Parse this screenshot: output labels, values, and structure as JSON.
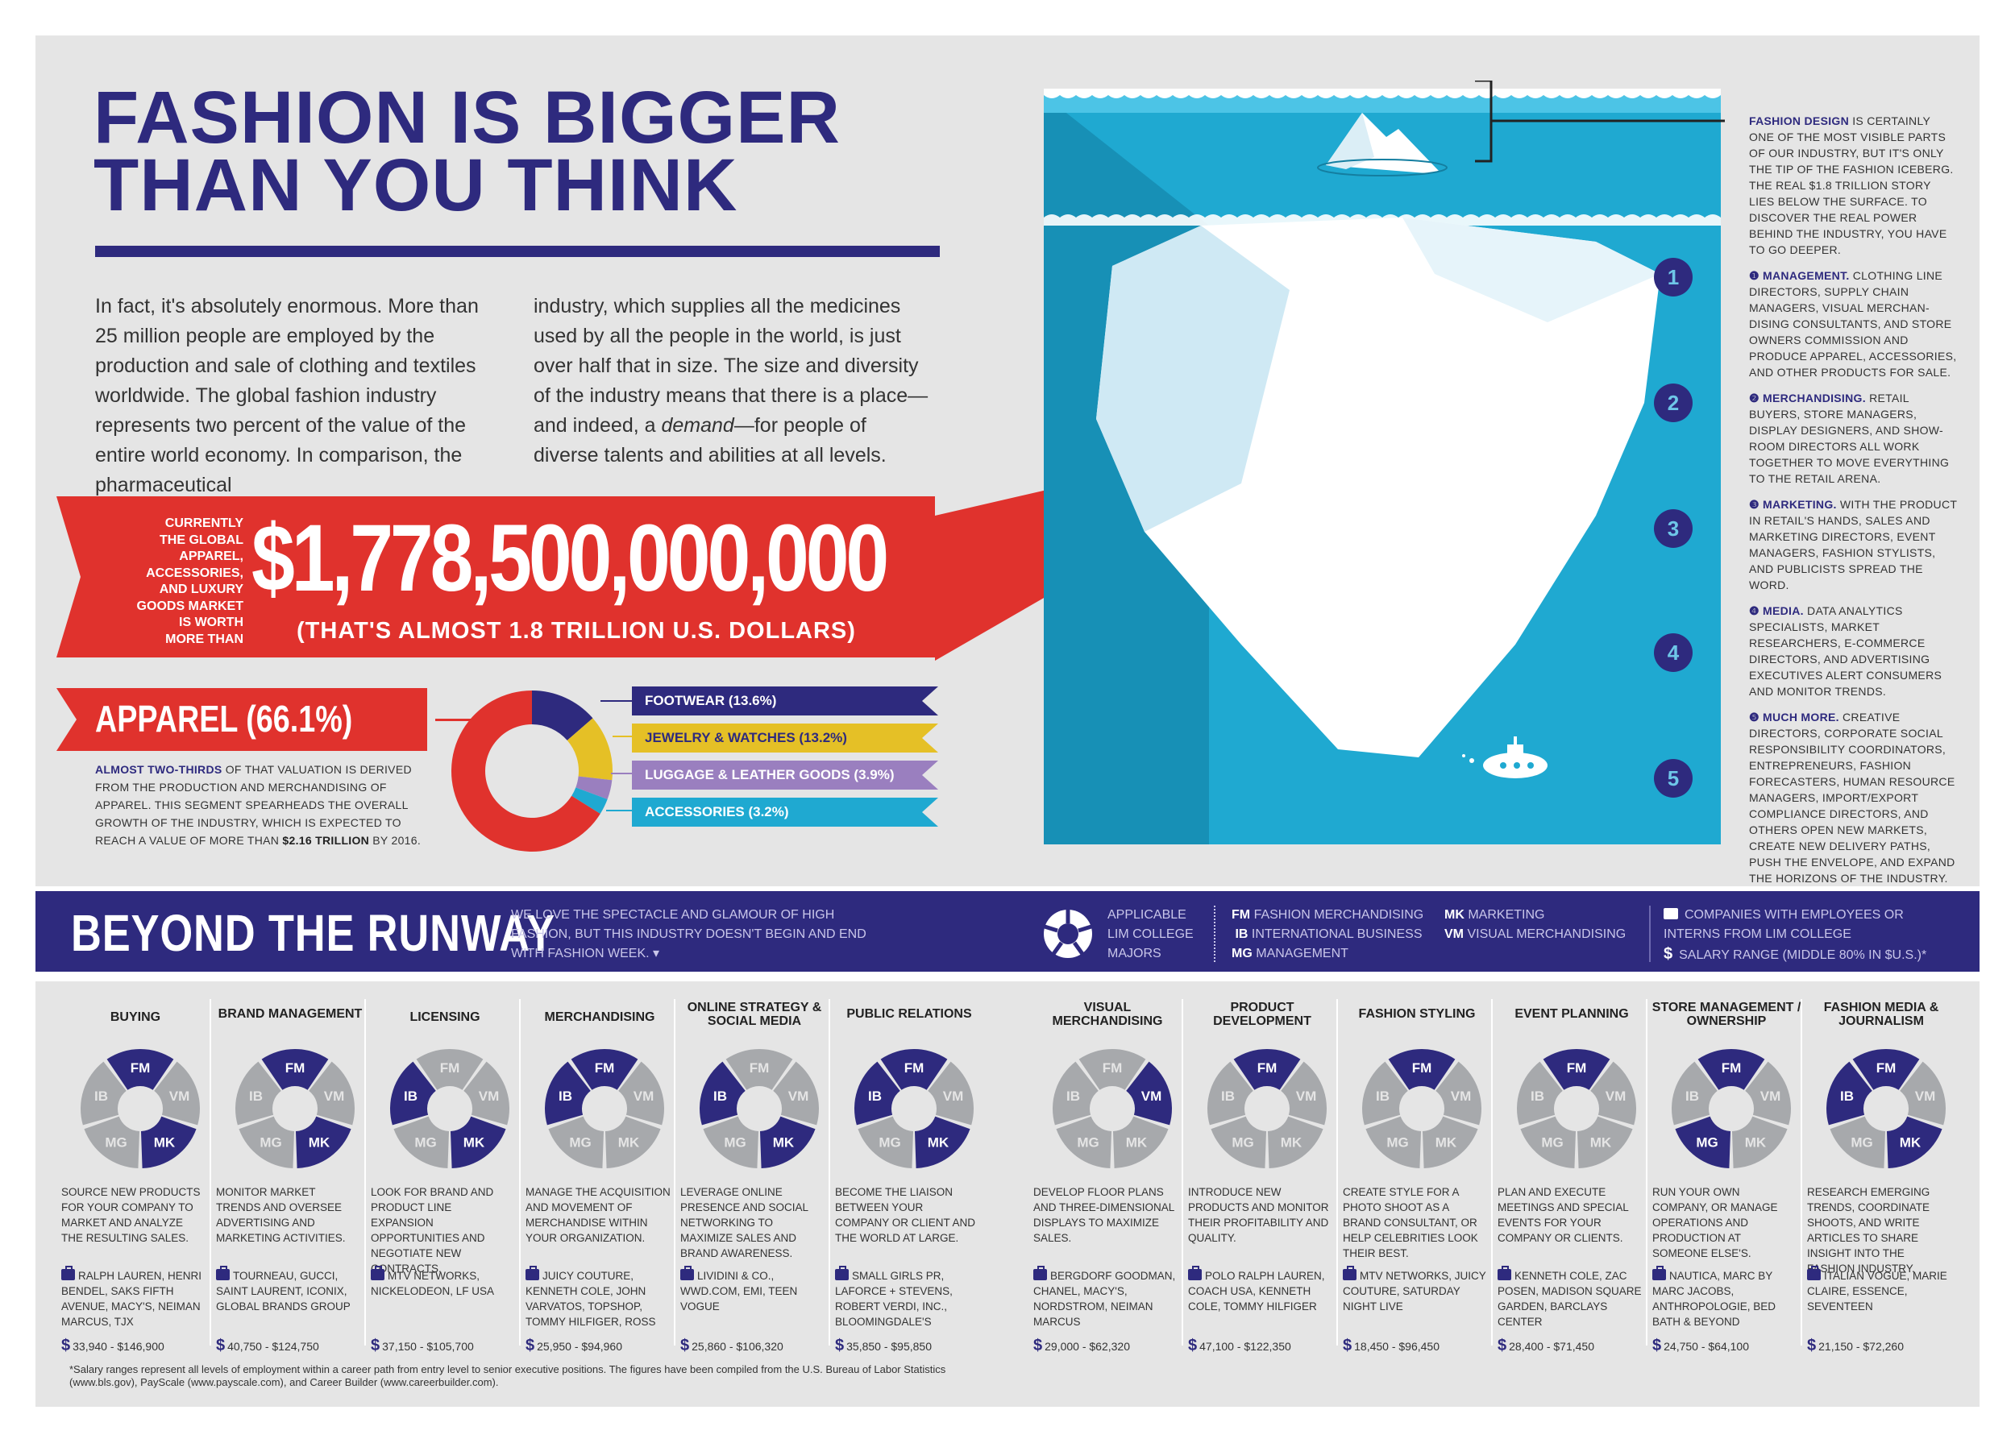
{
  "header": {
    "title_line1": "FASHION IS BIGGER",
    "title_line2": "THAN YOU THINK"
  },
  "intro": {
    "col1": "In fact, it's absolutely enormous. More than 25 million people are employed by the production and sale of clothing and textiles worldwide. The global fashion industry represents two percent of the value of the entire world economy. In comparison, the pharmaceutical",
    "col2_a": "industry, which supplies all the medicines used by all the people in the world, is just over half that in size. The size and diversity of the industry means that there is a place—and indeed, a ",
    "col2_em": "demand",
    "col2_b": "—for people of diverse talents and abilities at all levels."
  },
  "market": {
    "lead": [
      "CURRENTLY",
      "THE GLOBAL",
      "APPAREL,",
      "ACCESSORIES,",
      "AND LUXURY",
      "GOODS MARKET",
      "IS WORTH",
      "MORE THAN"
    ],
    "value": "$1,778,500,000,000",
    "value_sub": "(THAT'S ALMOST 1.8 TRILLION U.S. DOLLARS)"
  },
  "apparel": {
    "label": "APPAREL (66.1%)",
    "desc_lead": "ALMOST TWO-THIRDS",
    "desc_body": " OF THAT VALUATION IS DERIVED FROM THE PRODUCTION AND MERCHANDISING OF APPAREL. THIS SEGMENT SPEARHEADS THE OVERALL GROWTH OF THE INDUSTRY, WHICH IS EXPECTED TO REACH A VALUE OF MORE THAN ",
    "desc_value": "$2.16 TRILLION",
    "desc_end": " BY 2016."
  },
  "segments": [
    {
      "label": "FOOTWEAR (13.6%)",
      "percent": 13.6,
      "color": "#2e2a7e"
    },
    {
      "label": "JEWELRY & WATCHES (13.2%)",
      "percent": 13.2,
      "color": "#e5c026"
    },
    {
      "label": "LUGGAGE & LEATHER GOODS (3.9%)",
      "percent": 3.9,
      "color": "#9a7fbf"
    },
    {
      "label": "ACCESSORIES (3.2%)",
      "percent": 3.2,
      "color": "#1fa9d1"
    }
  ],
  "apparel_percent": 66.1,
  "apparel_color": "#e0322d",
  "iceberg": {
    "numbers": [
      "1",
      "2",
      "3",
      "4",
      "5"
    ],
    "fashion_design_lead": "FASHION DESIGN",
    "fashion_design_body": " IS CERTAINLY ONE OF THE MOST VISIBLE PARTS OF OUR INDUSTRY, BUT IT'S ONLY THE TIP OF THE FASHION ICEBERG. THE REAL $1.8 TRILLION STORY LIES BELOW THE SURFACE. TO DISCOVER THE REAL POWER BEHIND THE INDUSTRY, YOU HAVE TO GO DEEPER.",
    "levels": [
      {
        "num": "1",
        "lead": "MANAGEMENT.",
        "body": " CLOTHING LINE DIRECTORS, SUPPLY CHAIN MANAGERS, VISUAL MERCHAN-DISING CONSULTANTS, AND STORE OWNERS COMMISSION AND PRODUCE APPAREL, ACCESSORIES, AND OTHER PRODUCTS FOR SALE."
      },
      {
        "num": "2",
        "lead": "MERCHANDISING.",
        "body": " RETAIL BUYERS, STORE MANAGERS, DISPLAY DESIGNERS, AND SHOW-ROOM DIRECTORS ALL WORK TOGETHER TO MOVE EVERYTHING TO THE RETAIL ARENA."
      },
      {
        "num": "3",
        "lead": "MARKETING.",
        "body": " WITH THE PRODUCT IN RETAIL'S HANDS, SALES AND MARKETING DIRECTORS, EVENT MANAGERS, FASHION STYLISTS, AND PUBLICISTS SPREAD THE WORD."
      },
      {
        "num": "4",
        "lead": "MEDIA.",
        "body": " DATA ANALYTICS SPECIALISTS, MARKET RESEARCHERS, E-COMMERCE DIRECTORS, AND ADVERTISING EXECUTIVES ALERT CONSUMERS AND MONITOR TRENDS."
      },
      {
        "num": "5",
        "lead": "MUCH MORE.",
        "body": " CREATIVE DIRECTORS, CORPORATE SOCIAL RESPONSIBILITY COORDINATORS, ENTREPRENEURS, FASHION FORECASTERS, HUMAN RESOURCE MANAGERS, IMPORT/EXPORT COMPLIANCE DIRECTORS, AND OTHERS OPEN NEW MARKETS, CREATE NEW DELIVERY PATHS, PUSH THE ENVELOPE, AND EXPAND THE HORIZONS OF THE INDUSTRY."
      }
    ]
  },
  "runway": {
    "title": "BEYOND THE RUNWAY",
    "intro": "WE LOVE THE SPECTACLE AND GLAMOUR OF HIGH FASHION, BUT THIS INDUSTRY DOESN'T BEGIN AND END WITH FASHION WEEK. ▾",
    "majors_label": [
      "APPLICABLE",
      "LIM COLLEGE",
      "MAJORS"
    ],
    "majors": [
      {
        "code": "FM",
        "name": "FASHION MERCHANDISING"
      },
      {
        "code": "MK",
        "name": "MARKETING"
      },
      {
        "code": "IB",
        "name": "INTERNATIONAL BUSINESS"
      },
      {
        "code": "VM",
        "name": "VISUAL MERCHANDISING"
      },
      {
        "code": "MG",
        "name": "MANAGEMENT"
      }
    ],
    "companies_label": "COMPANIES WITH EMPLOYEES OR INTERNS FROM LIM COLLEGE",
    "salary_label": "SALARY RANGE (MIDDLE 80% IN $U.S.)*"
  },
  "careers": [
    {
      "title": "BUYING",
      "active": [
        "FM",
        "MK"
      ],
      "desc": "SOURCE NEW PRODUCTS FOR YOUR COMPANY TO MARKET AND ANALYZE THE RESULTING SALES.",
      "companies": "RALPH LAUREN, HENRI BENDEL, SAKS FIFTH AVENUE, MACY'S, NEIMAN MARCUS, TJX",
      "salary": "33,940 - $146,900"
    },
    {
      "title": "BRAND MANAGEMENT",
      "active": [
        "FM",
        "MK"
      ],
      "desc": "MONITOR MARKET TRENDS AND OVERSEE ADVERTISING AND MARKETING ACTIVITIES.",
      "companies": "TOURNEAU, GUCCI, SAINT LAURENT, ICONIX, GLOBAL BRANDS GROUP",
      "salary": "40,750 - $124,750"
    },
    {
      "title": "LICENSING",
      "active": [
        "IB",
        "MK"
      ],
      "desc": "LOOK FOR BRAND AND PRODUCT LINE EXPANSION OPPORTUNITIES AND NEGOTIATE NEW CONTRACTS.",
      "companies": "MTV NETWORKS, NICKELODEON, LF USA",
      "salary": "37,150 - $105,700"
    },
    {
      "title": "MERCHANDISING",
      "active": [
        "FM",
        "IB"
      ],
      "desc": "MANAGE THE ACQUISITION AND MOVEMENT OF MERCHANDISE WITHIN YOUR ORGANIZATION.",
      "companies": "JUICY COUTURE, KENNETH COLE, JOHN VARVATOS, TOPSHOP, TOMMY HILFIGER, ROSS",
      "salary": "25,950 - $94,960"
    },
    {
      "title": "ONLINE STRATEGY & SOCIAL MEDIA",
      "active": [
        "IB",
        "MK"
      ],
      "desc": "LEVERAGE ONLINE PRESENCE AND SOCIAL NETWORKING TO MAXIMIZE SALES AND BRAND AWARENESS.",
      "companies": "LIVIDINI & CO., WWD.COM, EMI, TEEN VOGUE",
      "salary": "25,860 - $106,320"
    },
    {
      "title": "PUBLIC RELATIONS",
      "active": [
        "FM",
        "IB",
        "MK"
      ],
      "desc": "BECOME THE LIAISON BETWEEN YOUR COMPANY OR CLIENT AND THE WORLD AT LARGE.",
      "companies": "SMALL GIRLS PR, LAFORCE + STEVENS, ROBERT VERDI, INC., BLOOMINGDALE'S",
      "salary": "35,850 - $95,850"
    },
    {
      "title": "VISUAL MERCHANDISING",
      "active": [
        "VM"
      ],
      "desc": "DEVELOP FLOOR PLANS AND THREE-DIMENSIONAL DISPLAYS TO MAXIMIZE SALES.",
      "companies": "BERGDORF GOODMAN, CHANEL, MACY'S, NORDSTROM, NEIMAN MARCUS",
      "salary": "29,000 - $62,320"
    },
    {
      "title": "PRODUCT DEVELOPMENT",
      "active": [
        "FM"
      ],
      "desc": "INTRODUCE NEW PRODUCTS AND MONITOR THEIR PROFITABILITY AND QUALITY.",
      "companies": "POLO RALPH LAUREN, COACH USA, KENNETH COLE, TOMMY HILFIGER",
      "salary": "47,100 - $122,350"
    },
    {
      "title": "FASHION STYLING",
      "active": [
        "FM"
      ],
      "desc": "CREATE STYLE FOR A PHOTO SHOOT AS A BRAND CONSULTANT, OR HELP CELEBRITIES LOOK THEIR BEST.",
      "companies": "MTV NETWORKS, JUICY COUTURE, SATURDAY NIGHT LIVE",
      "salary": "18,450 - $96,450"
    },
    {
      "title": "EVENT PLANNING",
      "active": [
        "FM"
      ],
      "desc": "PLAN AND EXECUTE MEETINGS AND SPECIAL EVENTS FOR YOUR COMPANY OR CLIENTS.",
      "companies": "KENNETH COLE, ZAC POSEN, MADISON SQUARE GARDEN, BARCLAYS CENTER",
      "salary": "28,400 - $71,450"
    },
    {
      "title": "STORE MANAGEMENT / OWNERSHIP",
      "active": [
        "FM",
        "MG"
      ],
      "desc": "RUN YOUR OWN COMPANY, OR MANAGE OPERATIONS AND PRODUCTION AT SOMEONE ELSE'S.",
      "companies": "NAUTICA, MARC BY MARC JACOBS, ANTHROPOLOGIE, BED BATH & BEYOND",
      "salary": "24,750 - $64,100"
    },
    {
      "title": "FASHION MEDIA & JOURNALISM",
      "active": [
        "FM",
        "IB",
        "MK"
      ],
      "desc": "RESEARCH EMERGING TRENDS, COORDINATE SHOOTS, AND WRITE ARTICLES TO SHARE INSIGHT INTO THE FASHION INDUSTRY.",
      "companies": "ITALIAN VOGUE, MARIE CLAIRE, ESSENCE, SEVENTEEN",
      "salary": "21,150 - $72,260"
    }
  ],
  "footnote": "*Salary ranges represent all levels of employment within a career path from entry level to senior executive positions. The figures have been compiled from the U.S. Bureau of Labor Statistics (www.bls.gov), PayScale (www.payscale.com), and Career Builder (www.careerbuilder.com).",
  "colors": {
    "navy": "#2e2a7e",
    "red": "#e0322d",
    "sea": "#1fa9d1",
    "grey": "#a7a9ac"
  }
}
